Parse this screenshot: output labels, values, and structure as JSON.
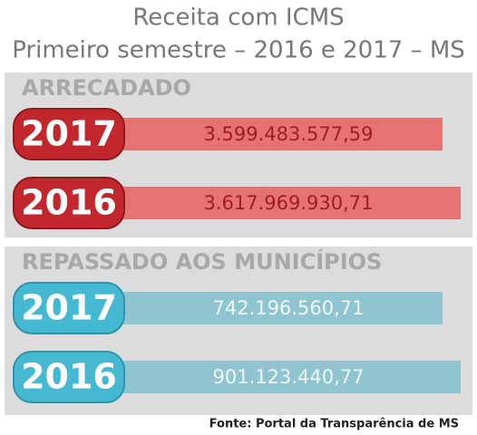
{
  "title": [
    "Receita com ICMS",
    "Primeiro semestre – 2016 e 2017 – MS"
  ],
  "sections": [
    {
      "heading": "ARRECADADO",
      "rows": [
        {
          "year": "2017",
          "amount": "3.599.483.577,59"
        },
        {
          "year": "2016",
          "amount": "3.617.969.930,71"
        }
      ]
    },
    {
      "heading": "REPASSADO AOS MUNICÍPIOS",
      "rows": [
        {
          "year": "2017",
          "amount": "742.196.560,71"
        },
        {
          "year": "2016",
          "amount": "901.123.440,77"
        }
      ]
    }
  ],
  "source": "Fonte: Portal da Transparência de MS"
}
